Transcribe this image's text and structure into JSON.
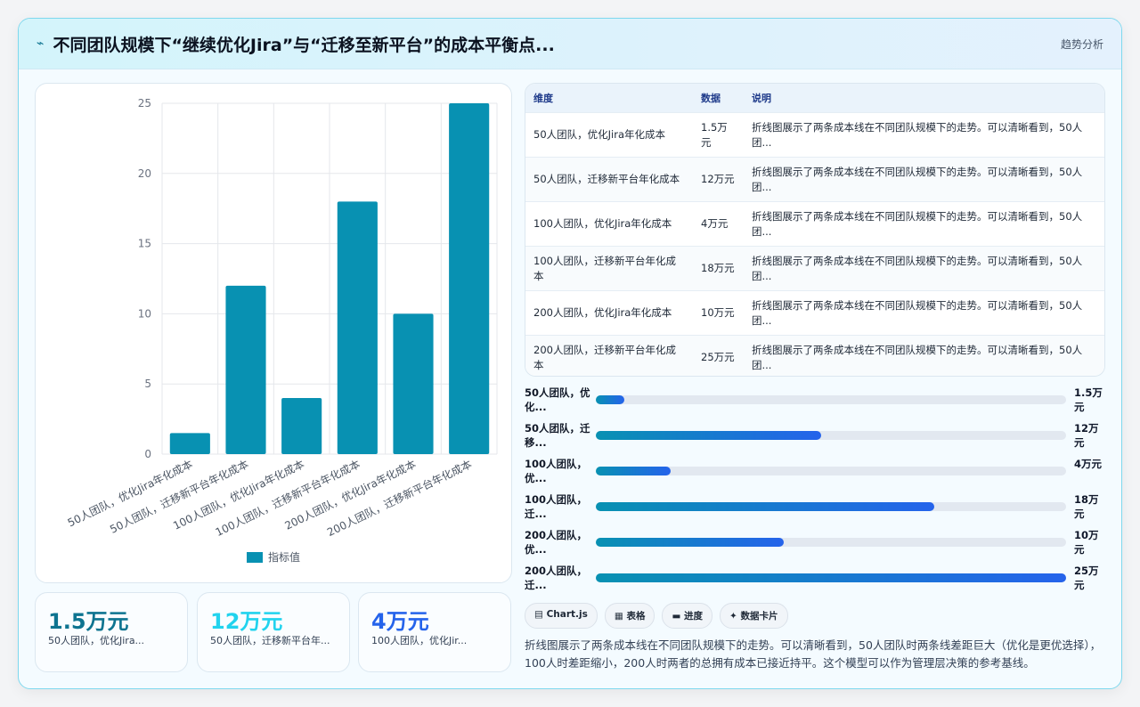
{
  "header": {
    "icon": "trend-line-icon",
    "title": "不同团队规模下“继续优化Jira”与“迁移至新平台”的成本平衡点...",
    "tag": "趋势分析"
  },
  "chart_data": {
    "type": "bar",
    "categories": [
      "50人团队，优化Jira年化成本",
      "50人团队，迁移新平台年化成本",
      "100人团队，优化Jira年化成本",
      "100人团队，迁移新平台年化成本",
      "200人团队，优化Jira年化成本",
      "200人团队，迁移新平台年化成本"
    ],
    "series": [
      {
        "name": "指标值",
        "values": [
          1.5,
          12,
          4,
          18,
          10,
          25
        ],
        "color": "#0891b2"
      }
    ],
    "ylim": [
      0,
      25
    ],
    "yticks": [
      "0",
      "5",
      "10",
      "15",
      "20",
      "25"
    ],
    "grid": true,
    "legend": "bottom"
  },
  "kpis": [
    {
      "value": "1.5万元",
      "label": "50人团队，优化Jira...",
      "color": "#0e7490"
    },
    {
      "value": "12万元",
      "label": "50人团队，迁移新平台年...",
      "color": "#22d3ee"
    },
    {
      "value": "4万元",
      "label": "100人团队，优化Jir...",
      "color": "#2563eb"
    }
  ],
  "table": {
    "headers": [
      "维度",
      "数据",
      "说明"
    ],
    "rows": [
      [
        "50人团队，优化Jira年化成本",
        "1.5万元",
        "折线图展示了两条成本线在不同团队规模下的走势。可以清晰看到，50人团..."
      ],
      [
        "50人团队，迁移新平台年化成本",
        "12万元",
        "折线图展示了两条成本线在不同团队规模下的走势。可以清晰看到，50人团..."
      ],
      [
        "100人团队，优化Jira年化成本",
        "4万元",
        "折线图展示了两条成本线在不同团队规模下的走势。可以清晰看到，50人团..."
      ],
      [
        "100人团队，迁移新平台年化成本",
        "18万元",
        "折线图展示了两条成本线在不同团队规模下的走势。可以清晰看到，50人团..."
      ],
      [
        "200人团队，优化Jira年化成本",
        "10万元",
        "折线图展示了两条成本线在不同团队规模下的走势。可以清晰看到，50人团..."
      ],
      [
        "200人团队，迁移新平台年化成本",
        "25万元",
        "折线图展示了两条成本线在不同团队规模下的走势。可以清晰看到，50人团..."
      ]
    ]
  },
  "progress": [
    {
      "label": "50人团队，优化...",
      "value_text": "1.5万元",
      "fraction": 0.06
    },
    {
      "label": "50人团队，迁移...",
      "value_text": "12万元",
      "fraction": 0.48
    },
    {
      "label": "100人团队，优...",
      "value_text": "4万元",
      "fraction": 0.16
    },
    {
      "label": "100人团队，迁...",
      "value_text": "18万元",
      "fraction": 0.72
    },
    {
      "label": "200人团队，优...",
      "value_text": "10万元",
      "fraction": 0.4
    },
    {
      "label": "200人团队，迁...",
      "value_text": "25万元",
      "fraction": 1.0
    }
  ],
  "chips": [
    {
      "icon": "chart-icon",
      "glyph": "▤",
      "label": "Chart.js"
    },
    {
      "icon": "table-icon",
      "glyph": "▦",
      "label": "表格"
    },
    {
      "icon": "progress-icon",
      "glyph": "▬",
      "label": "进度"
    },
    {
      "icon": "card-icon",
      "glyph": "✦",
      "label": "数据卡片"
    }
  ],
  "note": "折线图展示了两条成本线在不同团队规模下的走势。可以清晰看到，50人团队时两条线差距巨大（优化是更优选择），100人时差距缩小，200人时两者的总拥有成本已接近持平。这个模型可以作为管理层决策的参考基线。"
}
